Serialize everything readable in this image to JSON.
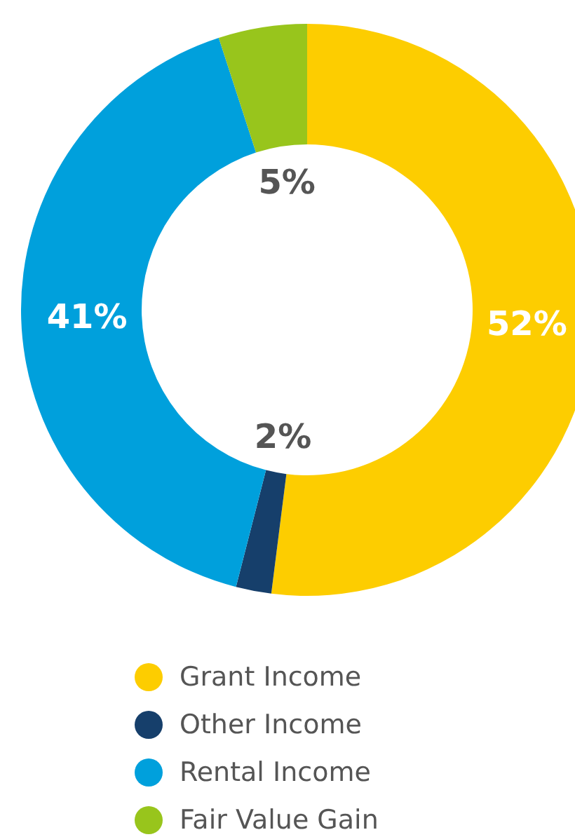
{
  "chart_data": {
    "type": "donut",
    "categories": [
      "Grant Income",
      "Other Income",
      "Rental Income",
      "Fair Value Gain"
    ],
    "values": [
      52,
      2,
      41,
      5
    ],
    "colors": [
      "#fdcd00",
      "#163f6b",
      "#00a0dc",
      "#98c51c"
    ],
    "value_labels": [
      "52%",
      "2%",
      "41%",
      "5%"
    ],
    "legend": "bottom"
  }
}
